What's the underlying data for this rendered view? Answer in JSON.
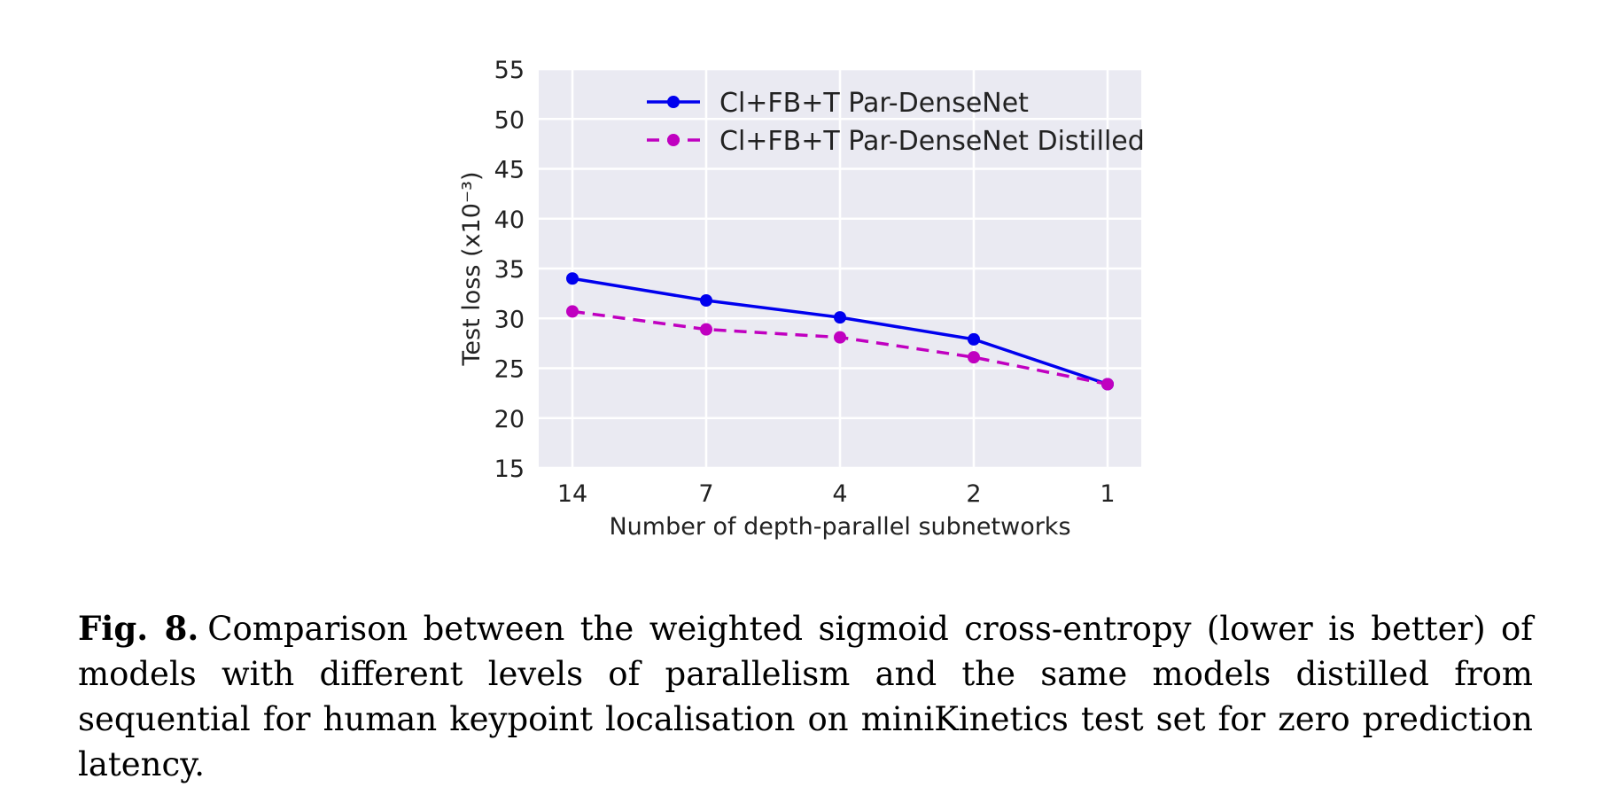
{
  "chart_data": {
    "type": "line",
    "categories": [
      "14",
      "7",
      "4",
      "2",
      "1"
    ],
    "series": [
      {
        "name": "Cl+FB+T Par-DenseNet",
        "values": [
          34.0,
          31.8,
          30.1,
          27.9,
          23.4
        ],
        "color": "#0000ee",
        "linestyle": "solid"
      },
      {
        "name": "Cl+FB+T Par-DenseNet Distilled",
        "values": [
          30.7,
          28.9,
          28.1,
          26.1,
          23.4
        ],
        "color": "#c000c0",
        "linestyle": "dashed"
      }
    ],
    "xlabel": "Number of depth-parallel subnetworks",
    "ylabel": "Test loss (x10⁻³)",
    "ylim": [
      15,
      55
    ],
    "yticks": [
      "15",
      "20",
      "25",
      "30",
      "35",
      "40",
      "45",
      "50",
      "55"
    ],
    "grid": true,
    "legend": "top-center",
    "background": "#eaeaf2"
  },
  "caption": {
    "label": "Fig. 8.",
    "text": "Comparison between the weighted sigmoid cross-entropy (lower is better) of models with different levels of parallelism and the same models distilled from sequential for human keypoint localisation on miniKinetics test set for zero prediction latency."
  }
}
